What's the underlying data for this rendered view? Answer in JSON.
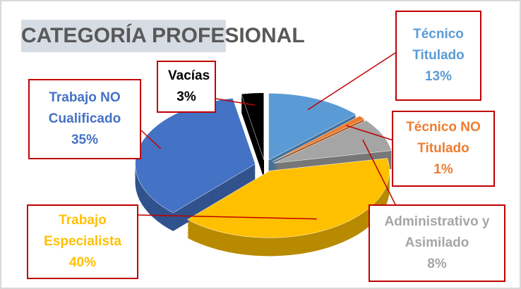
{
  "chart_data": {
    "type": "pie",
    "title": "CATEGORÍA PROFESIONAL",
    "categories": [
      "Técnico Titulado",
      "Técnico NO Titulado",
      "Administrativo y Asimilado",
      "Trabajo Especialista",
      "Trabajo NO Cualificado",
      "Vacías"
    ],
    "values": [
      13,
      1,
      8,
      40,
      35,
      3
    ],
    "value_labels": [
      "13%",
      "1%",
      "8%",
      "40%",
      "35%",
      "3%"
    ],
    "colors": [
      "#5b9bd5",
      "#ed7d31",
      "#a5a5a5",
      "#ffc000",
      "#4472c4",
      "#000000"
    ]
  }
}
